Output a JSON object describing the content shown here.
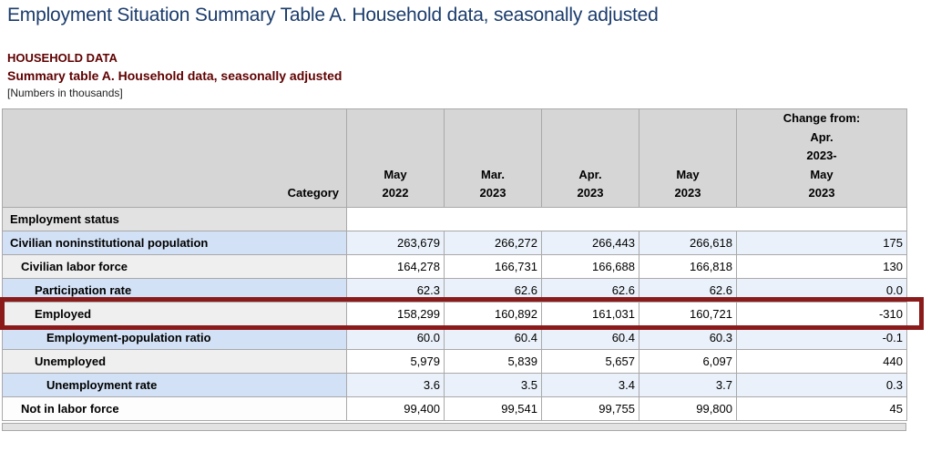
{
  "page": {
    "title": "Employment Situation Summary Table A. Household data, seasonally adjusted",
    "section_heading": "HOUSEHOLD DATA",
    "table_title": "Summary table A. Household data, seasonally adjusted",
    "units_note": "[Numbers in thousands]"
  },
  "table": {
    "category_header": "Category",
    "columns": [
      {
        "id": "may-2022",
        "lines": [
          "May",
          "2022"
        ]
      },
      {
        "id": "mar-2023",
        "lines": [
          "Mar.",
          "2023"
        ]
      },
      {
        "id": "apr-2023",
        "lines": [
          "Apr.",
          "2023"
        ]
      },
      {
        "id": "may-2023",
        "lines": [
          "May",
          "2023"
        ]
      },
      {
        "id": "change-apr-2023-may-2023",
        "lines": [
          "Change from:",
          "Apr.",
          "2023-",
          "May",
          "2023"
        ]
      }
    ],
    "rows": [
      {
        "label": "Employment status",
        "indent": 0,
        "shade": "section",
        "highlighted": false,
        "values": [
          "",
          "",
          "",
          "",
          ""
        ]
      },
      {
        "label": "Civilian noninstitutional population",
        "indent": 0,
        "shade": "blue",
        "highlighted": false,
        "values": [
          "263,679",
          "266,272",
          "266,443",
          "266,618",
          "175"
        ]
      },
      {
        "label": "Civilian labor force",
        "indent": 1,
        "shade": "gray",
        "highlighted": false,
        "values": [
          "164,278",
          "166,731",
          "166,688",
          "166,818",
          "130"
        ]
      },
      {
        "label": "Participation rate",
        "indent": 2,
        "shade": "blue",
        "highlighted": false,
        "values": [
          "62.3",
          "62.6",
          "62.6",
          "62.6",
          "0.0"
        ]
      },
      {
        "label": "Employed",
        "indent": 2,
        "shade": "gray",
        "highlighted": true,
        "values": [
          "158,299",
          "160,892",
          "161,031",
          "160,721",
          "-310"
        ]
      },
      {
        "label": "Employment-population ratio",
        "indent": 3,
        "shade": "blue",
        "highlighted": false,
        "values": [
          "60.0",
          "60.4",
          "60.4",
          "60.3",
          "-0.1"
        ]
      },
      {
        "label": "Unemployed",
        "indent": 2,
        "shade": "gray",
        "highlighted": false,
        "values": [
          "5,979",
          "5,839",
          "5,657",
          "6,097",
          "440"
        ]
      },
      {
        "label": "Unemployment rate",
        "indent": 3,
        "shade": "blue",
        "highlighted": false,
        "values": [
          "3.6",
          "3.5",
          "3.4",
          "3.7",
          "0.3"
        ]
      },
      {
        "label": "Not in labor force",
        "indent": 1,
        "shade": "white",
        "highlighted": false,
        "values": [
          "99,400",
          "99,541",
          "99,755",
          "99,800",
          "45"
        ]
      }
    ]
  },
  "colors": {
    "title_text": "#1b3c6d",
    "heading_text": "#5f0000",
    "highlight_border": "#8b1a1a",
    "header_bg": "#d6d6d6",
    "section_label_bg": "#e2e2e2",
    "blue_label_bg": "#d2e1f5",
    "blue_data_bg": "#eaf1fa",
    "gray_label_bg": "#efefef",
    "grid_line": "#a9a9a9"
  }
}
